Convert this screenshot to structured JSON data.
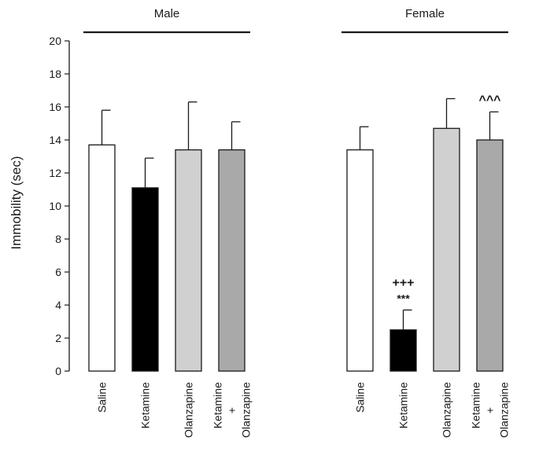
{
  "chart_data": {
    "type": "bar",
    "ylabel": "Immobility (sec)",
    "ylim": [
      0,
      20
    ],
    "yticks": [
      0,
      2,
      4,
      6,
      8,
      10,
      12,
      14,
      16,
      18,
      20
    ],
    "grid": false,
    "legend": "none",
    "groups": [
      {
        "name": "Male",
        "bars": [
          {
            "category": "Saline",
            "category_lines": [
              "Saline"
            ],
            "value": 13.7,
            "error": 2.1,
            "color": "#ffffff",
            "annotation": []
          },
          {
            "category": "Ketamine",
            "category_lines": [
              "Ketamine"
            ],
            "value": 11.1,
            "error": 1.8,
            "color": "#000000",
            "annotation": []
          },
          {
            "category": "Olanzapine",
            "category_lines": [
              "Olanzapine"
            ],
            "value": 13.4,
            "error": 2.9,
            "color": "#d0d0d0",
            "annotation": []
          },
          {
            "category": "Ketamine + Olanzapine",
            "category_lines": [
              "Ketamine",
              "+",
              "Olanzapine"
            ],
            "value": 13.4,
            "error": 1.7,
            "color": "#a9a9a9",
            "annotation": []
          }
        ]
      },
      {
        "name": "Female",
        "bars": [
          {
            "category": "Saline",
            "category_lines": [
              "Saline"
            ],
            "value": 13.4,
            "error": 1.4,
            "color": "#ffffff",
            "annotation": []
          },
          {
            "category": "Ketamine",
            "category_lines": [
              "Ketamine"
            ],
            "value": 2.5,
            "error": 1.2,
            "color": "#000000",
            "annotation": [
              "+++",
              "***"
            ]
          },
          {
            "category": "Olanzapine",
            "category_lines": [
              "Olanzapine"
            ],
            "value": 14.7,
            "error": 1.8,
            "color": "#d0d0d0",
            "annotation": []
          },
          {
            "category": "Ketamine + Olanzapine",
            "category_lines": [
              "Ketamine",
              "+",
              "Olanzapine"
            ],
            "value": 14.0,
            "error": 1.7,
            "color": "#a9a9a9",
            "annotation": [
              "^^^"
            ]
          }
        ]
      }
    ]
  }
}
